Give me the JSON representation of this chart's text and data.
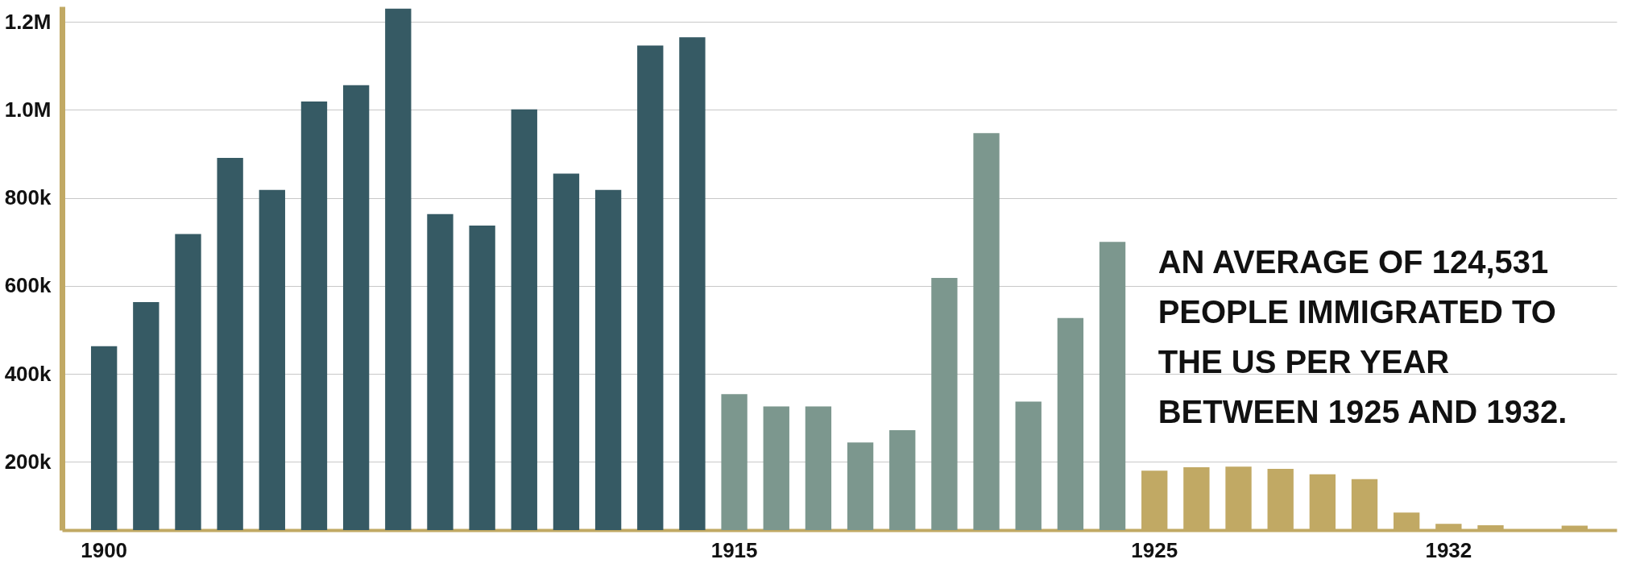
{
  "chart_data": {
    "type": "bar",
    "categories": [
      "1900",
      null,
      null,
      null,
      null,
      null,
      null,
      null,
      null,
      null,
      null,
      null,
      null,
      null,
      null,
      "1915",
      null,
      null,
      null,
      null,
      null,
      null,
      null,
      null,
      null,
      "1925",
      null,
      null,
      null,
      null,
      null,
      null,
      "1932",
      null,
      null,
      null
    ],
    "values": [
      463000,
      563000,
      718000,
      891000,
      818000,
      1019000,
      1056000,
      1230000,
      763000,
      737000,
      1001000,
      855000,
      818000,
      1146000,
      1165000,
      354000,
      326000,
      326000,
      244000,
      272000,
      618000,
      947000,
      337000,
      527000,
      700000,
      180000,
      188000,
      189000,
      184000,
      172000,
      161000,
      85000,
      59000,
      56000,
      null,
      55000
    ],
    "colors": [
      "#365a64",
      "#365a64",
      "#365a64",
      "#365a64",
      "#365a64",
      "#365a64",
      "#365a64",
      "#365a64",
      "#365a64",
      "#365a64",
      "#365a64",
      "#365a64",
      "#365a64",
      "#365a64",
      "#365a64",
      "#7c978e",
      "#7c978e",
      "#7c978e",
      "#7c978e",
      "#7c978e",
      "#7c978e",
      "#7c978e",
      "#7c978e",
      "#7c978e",
      "#7c978e",
      "#c1a964",
      "#c1a964",
      "#c1a964",
      "#c1a964",
      "#c1a964",
      "#c1a964",
      "#c1a964",
      "#c1a964",
      "#c1a964",
      "#c1a964",
      "#c1a964"
    ],
    "ylim": [
      45000,
      1235000
    ],
    "yticks": [
      {
        "value": 200000,
        "label": "200k"
      },
      {
        "value": 400000,
        "label": "400k"
      },
      {
        "value": 600000,
        "label": "600k"
      },
      {
        "value": 800000,
        "label": "800k"
      },
      {
        "value": 1000000,
        "label": "1.0M"
      },
      {
        "value": 1200000,
        "label": "1.2M"
      }
    ],
    "grid": "y",
    "annotations": [
      "AN AVERAGE OF 124,531 PEOPLE IMMIGRATED TO THE US PER YEAR BETWEEN 1925 AND 1932."
    ]
  }
}
